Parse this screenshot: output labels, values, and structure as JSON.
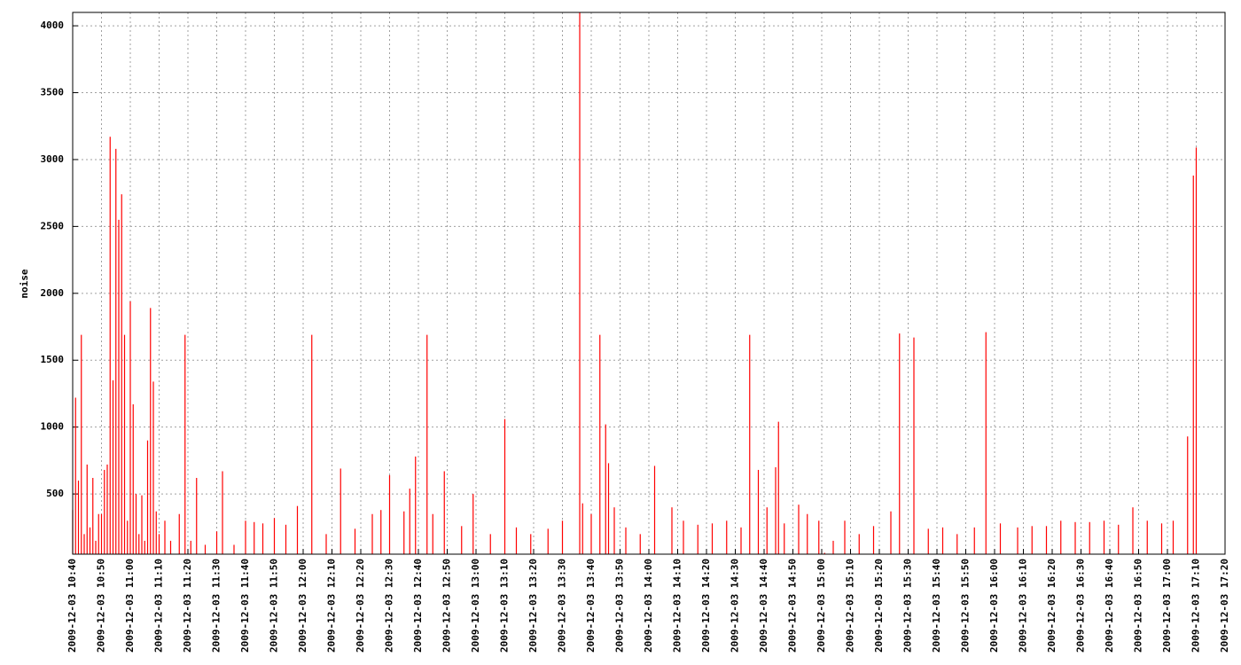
{
  "chart_data": {
    "type": "impulses",
    "y_label": "noise",
    "color": "#ff0000",
    "grid": true,
    "x": [
      "2009-12-03 10:40",
      "2009-12-03 10:41",
      "2009-12-03 10:42",
      "2009-12-03 10:43",
      "2009-12-03 10:44",
      "2009-12-03 10:45",
      "2009-12-03 10:46",
      "2009-12-03 10:47",
      "2009-12-03 10:48",
      "2009-12-03 10:49",
      "2009-12-03 10:50",
      "2009-12-03 10:51",
      "2009-12-03 10:52",
      "2009-12-03 10:53",
      "2009-12-03 10:54",
      "2009-12-03 10:55",
      "2009-12-03 10:56",
      "2009-12-03 10:57",
      "2009-12-03 10:58",
      "2009-12-03 10:59",
      "2009-12-03 11:00",
      "2009-12-03 11:01",
      "2009-12-03 11:02",
      "2009-12-03 11:03",
      "2009-12-03 11:04",
      "2009-12-03 11:05",
      "2009-12-03 11:06",
      "2009-12-03 11:07",
      "2009-12-03 11:08",
      "2009-12-03 11:09",
      "2009-12-03 11:10",
      "2009-12-03 11:12",
      "2009-12-03 11:14",
      "2009-12-03 11:17",
      "2009-12-03 11:19",
      "2009-12-03 11:21",
      "2009-12-03 11:23",
      "2009-12-03 11:26",
      "2009-12-03 11:30",
      "2009-12-03 11:32",
      "2009-12-03 11:36",
      "2009-12-03 11:40",
      "2009-12-03 11:43",
      "2009-12-03 11:46",
      "2009-12-03 11:50",
      "2009-12-03 11:54",
      "2009-12-03 11:58",
      "2009-12-03 12:03",
      "2009-12-03 12:08",
      "2009-12-03 12:13",
      "2009-12-03 12:18",
      "2009-12-03 12:24",
      "2009-12-03 12:27",
      "2009-12-03 12:30",
      "2009-12-03 12:35",
      "2009-12-03 12:37",
      "2009-12-03 12:39",
      "2009-12-03 12:43",
      "2009-12-03 12:45",
      "2009-12-03 12:49",
      "2009-12-03 12:55",
      "2009-12-03 12:59",
      "2009-12-03 13:05",
      "2009-12-03 13:10",
      "2009-12-03 13:14",
      "2009-12-03 13:19",
      "2009-12-03 13:25",
      "2009-12-03 13:30",
      "2009-12-03 13:36",
      "2009-12-03 13:37",
      "2009-12-03 13:40",
      "2009-12-03 13:43",
      "2009-12-03 13:45",
      "2009-12-03 13:46",
      "2009-12-03 13:48",
      "2009-12-03 13:52",
      "2009-12-03 13:57",
      "2009-12-03 14:02",
      "2009-12-03 14:08",
      "2009-12-03 14:12",
      "2009-12-03 14:17",
      "2009-12-03 14:22",
      "2009-12-03 14:27",
      "2009-12-03 14:32",
      "2009-12-03 14:35",
      "2009-12-03 14:38",
      "2009-12-03 14:41",
      "2009-12-03 14:44",
      "2009-12-03 14:45",
      "2009-12-03 14:47",
      "2009-12-03 14:52",
      "2009-12-03 14:55",
      "2009-12-03 14:59",
      "2009-12-03 15:01",
      "2009-12-03 15:04",
      "2009-12-03 15:08",
      "2009-12-03 15:13",
      "2009-12-03 15:18",
      "2009-12-03 15:24",
      "2009-12-03 15:27",
      "2009-12-03 15:32",
      "2009-12-03 15:37",
      "2009-12-03 15:42",
      "2009-12-03 15:47",
      "2009-12-03 15:53",
      "2009-12-03 15:57",
      "2009-12-03 16:02",
      "2009-12-03 16:08",
      "2009-12-03 16:13",
      "2009-12-03 16:18",
      "2009-12-03 16:23",
      "2009-12-03 16:28",
      "2009-12-03 16:33",
      "2009-12-03 16:38",
      "2009-12-03 16:43",
      "2009-12-03 16:48",
      "2009-12-03 16:53",
      "2009-12-03 16:58",
      "2009-12-03 17:02",
      "2009-12-03 17:07",
      "2009-12-03 17:09",
      "2009-12-03 17:10"
    ],
    "values": [
      380,
      1220,
      600,
      1690,
      200,
      720,
      250,
      620,
      150,
      350,
      350,
      680,
      720,
      3170,
      1350,
      3080,
      2550,
      2740,
      1690,
      300,
      1940,
      1170,
      500,
      200,
      490,
      150,
      900,
      1890,
      1340,
      370,
      200,
      300,
      150,
      350,
      1690,
      150,
      620,
      120,
      220,
      670,
      120,
      300,
      290,
      280,
      320,
      270,
      410,
      1690,
      200,
      690,
      240,
      350,
      380,
      640,
      370,
      540,
      780,
      1690,
      350,
      670,
      260,
      500,
      200,
      1060,
      250,
      200,
      240,
      300,
      4100,
      430,
      350,
      1690,
      1020,
      730,
      400,
      250,
      200,
      710,
      400,
      300,
      270,
      280,
      300,
      250,
      1690,
      680,
      400,
      700,
      1040,
      280,
      420,
      350,
      300,
      60,
      150,
      300,
      200,
      260,
      370,
      1700,
      1670,
      240,
      250,
      200,
      250,
      1710,
      280,
      250,
      260,
      260,
      300,
      290,
      290,
      300,
      270,
      400,
      300,
      280,
      300,
      930,
      2880,
      3090
    ],
    "xlim": [
      "2009-12-03 10:40",
      "2009-12-03 17:20"
    ],
    "xticks": [
      "2009-12-03 10:40",
      "2009-12-03 10:50",
      "2009-12-03 11:00",
      "2009-12-03 11:10",
      "2009-12-03 11:20",
      "2009-12-03 11:30",
      "2009-12-03 11:40",
      "2009-12-03 11:50",
      "2009-12-03 12:00",
      "2009-12-03 12:10",
      "2009-12-03 12:20",
      "2009-12-03 12:30",
      "2009-12-03 12:40",
      "2009-12-03 12:50",
      "2009-12-03 13:00",
      "2009-12-03 13:10",
      "2009-12-03 13:20",
      "2009-12-03 13:30",
      "2009-12-03 13:40",
      "2009-12-03 13:50",
      "2009-12-03 14:00",
      "2009-12-03 14:10",
      "2009-12-03 14:20",
      "2009-12-03 14:30",
      "2009-12-03 14:40",
      "2009-12-03 14:50",
      "2009-12-03 15:00",
      "2009-12-03 15:10",
      "2009-12-03 15:20",
      "2009-12-03 15:30",
      "2009-12-03 15:40",
      "2009-12-03 15:50",
      "2009-12-03 16:00",
      "2009-12-03 16:10",
      "2009-12-03 16:20",
      "2009-12-03 16:30",
      "2009-12-03 16:40",
      "2009-12-03 16:50",
      "2009-12-03 17:00",
      "2009-12-03 17:10",
      "2009-12-03 17:20"
    ],
    "ylim": [
      50,
      4100
    ],
    "yticks": [
      500,
      1000,
      1500,
      2000,
      2500,
      3000,
      3500,
      4000
    ]
  }
}
